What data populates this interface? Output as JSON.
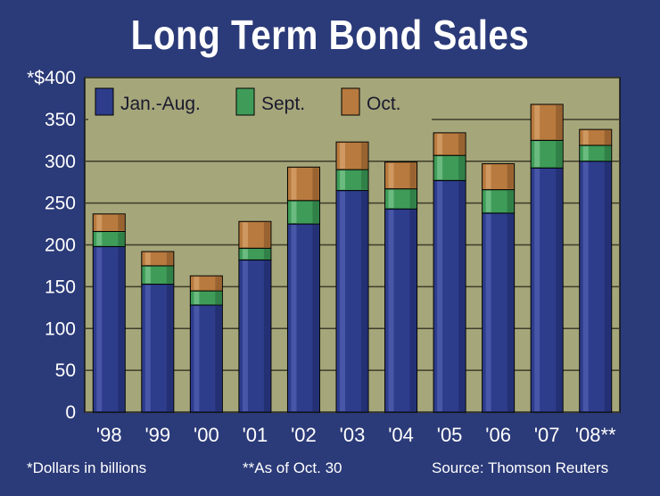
{
  "colors": {
    "background": "#2b3a78",
    "plot_area": "#a5a67a",
    "grid": "#3d3d2a",
    "jan_aug": "#2e3c8c",
    "sept": "#3e9c58",
    "oct": "#b87a3e",
    "text": "#ffffff"
  },
  "chart_data": {
    "type": "bar",
    "stacked": true,
    "title": "Long Term Bond Sales",
    "y_unit_label": "*$400",
    "categories": [
      "'98",
      "'99",
      "'00",
      "'01",
      "'02",
      "'03",
      "'04",
      "'05",
      "'06",
      "'07",
      "'08**"
    ],
    "series": [
      {
        "name": "Jan.-Aug.",
        "values": [
          198,
          153,
          128,
          182,
          225,
          265,
          243,
          277,
          238,
          292,
          300
        ]
      },
      {
        "name": "Sept.",
        "values": [
          18,
          22,
          17,
          14,
          28,
          25,
          24,
          30,
          28,
          33,
          19
        ]
      },
      {
        "name": "Oct.",
        "values": [
          21,
          17,
          18,
          32,
          40,
          33,
          32,
          27,
          31,
          43,
          19
        ]
      }
    ],
    "ylim": [
      0,
      400
    ],
    "yticks": [
      "0",
      "50",
      "100",
      "150",
      "200",
      "250",
      "300",
      "350"
    ],
    "grid": true,
    "legend_position": "top-left"
  },
  "footnotes": {
    "dollars": "*Dollars in billions",
    "as_of": "**As of Oct. 30",
    "source": "Source: Thomson Reuters"
  }
}
